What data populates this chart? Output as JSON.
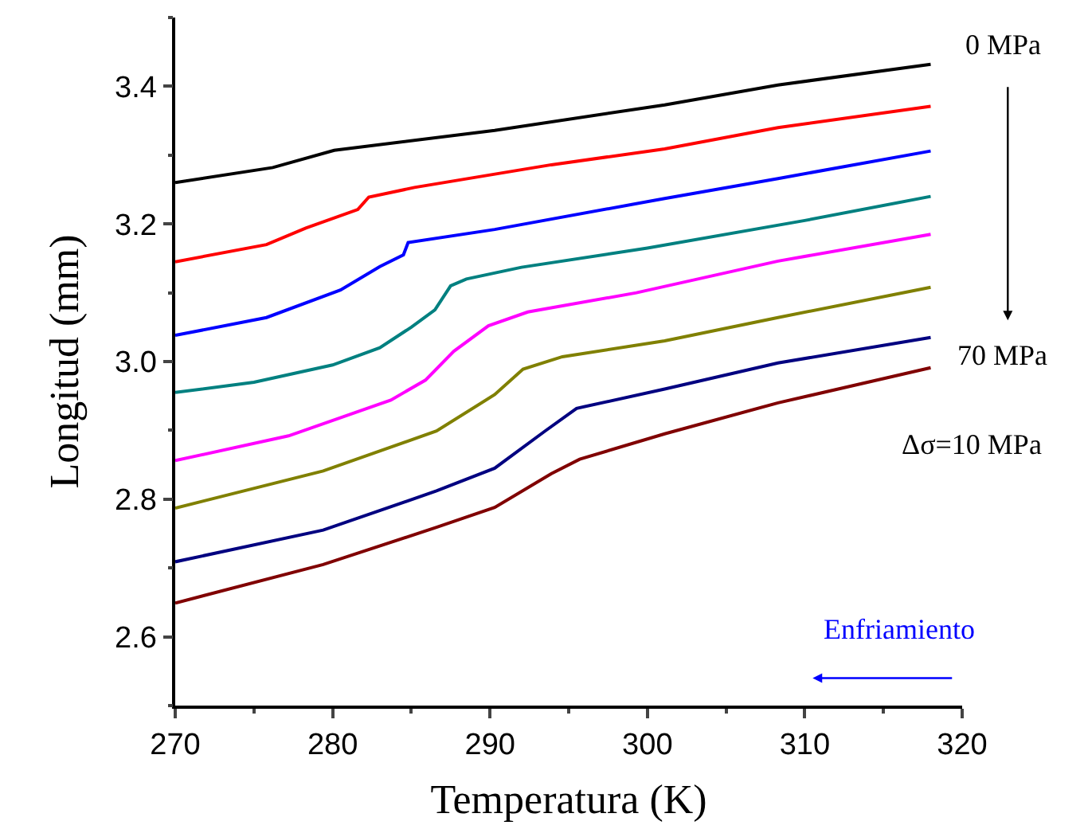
{
  "chart_data": {
    "type": "line",
    "xlabel": "Temperatura (K)",
    "ylabel": "Longitud (mm)",
    "xlim": [
      270,
      320
    ],
    "xticks": [
      270,
      280,
      290,
      300,
      310,
      320
    ],
    "ylim": [
      2.5,
      3.5
    ],
    "yticks": [
      {
        "value": 2.6,
        "label": "2.6"
      },
      {
        "value": 2.8,
        "label": "2.8"
      },
      {
        "value": 3.0,
        "label": "3.0"
      },
      {
        "value": 3.2,
        "label": "3.2"
      },
      {
        "value": 3.4,
        "label": "3.4"
      }
    ],
    "marker": "none",
    "line_style": "solid",
    "annotations": [
      "0 MPa",
      "70 MPa",
      "Δσ=10 MPa",
      "Enfriamiento"
    ],
    "series": [
      {
        "color": "#000000",
        "x": [
          270,
          276.2,
          280.1,
          290.3,
          301.1,
          308.3,
          318
        ],
        "values": [
          3.26,
          3.282,
          3.307,
          3.336,
          3.373,
          3.402,
          3.432
        ]
      },
      {
        "color": "#ff0000",
        "x": [
          270,
          275.8,
          278.3,
          281.6,
          282.3,
          285.2,
          293.9,
          301.1,
          308.3,
          318
        ],
        "values": [
          3.145,
          3.17,
          3.194,
          3.221,
          3.239,
          3.253,
          3.286,
          3.309,
          3.34,
          3.371
        ]
      },
      {
        "color": "#0000ff",
        "x": [
          270,
          275.8,
          280.5,
          283,
          284.5,
          284.8,
          290.3,
          301.1,
          308.3,
          318
        ],
        "values": [
          3.038,
          3.064,
          3.104,
          3.138,
          3.155,
          3.173,
          3.192,
          3.237,
          3.266,
          3.306
        ]
      },
      {
        "color": "#008080",
        "x": [
          270,
          275,
          280,
          283,
          285,
          286.5,
          287.5,
          288.5,
          292,
          300,
          310,
          318
        ],
        "values": [
          2.955,
          2.97,
          2.995,
          3.02,
          3.05,
          3.075,
          3.11,
          3.12,
          3.137,
          3.165,
          3.205,
          3.24
        ]
      },
      {
        "color": "#ff00ff",
        "x": [
          270,
          277.2,
          283.7,
          285.9,
          287.7,
          289.9,
          292.4,
          299.3,
          308.3,
          318
        ],
        "values": [
          2.856,
          2.892,
          2.944,
          2.973,
          3.015,
          3.052,
          3.072,
          3.1,
          3.146,
          3.185
        ]
      },
      {
        "color": "#808000",
        "x": [
          270,
          279.4,
          286.6,
          290.3,
          292.1,
          294.6,
          301.1,
          308.3,
          318
        ],
        "values": [
          2.787,
          2.841,
          2.899,
          2.952,
          2.989,
          3.007,
          3.03,
          3.064,
          3.108
        ]
      },
      {
        "color": "#000080",
        "x": [
          270,
          279.4,
          286.6,
          290.3,
          293.5,
          295.5,
          301.1,
          308.3,
          318
        ],
        "values": [
          2.709,
          2.755,
          2.812,
          2.845,
          2.899,
          2.932,
          2.96,
          2.998,
          3.035
        ]
      },
      {
        "color": "#800000",
        "x": [
          270,
          279.4,
          286.6,
          290.3,
          293.9,
          295.7,
          301.1,
          308.3,
          318
        ],
        "values": [
          2.649,
          2.705,
          2.759,
          2.788,
          2.837,
          2.858,
          2.895,
          2.94,
          2.991
        ]
      }
    ]
  }
}
